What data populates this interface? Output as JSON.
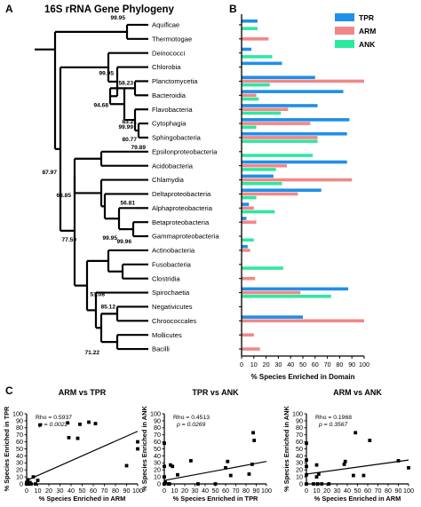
{
  "panels": {
    "A": {
      "letter": "A",
      "title": "16S rRNA Gene Phylogeny"
    },
    "B": {
      "letter": "B"
    },
    "C": {
      "letter": "C"
    }
  },
  "colors": {
    "TPR": "#1f8fe8",
    "ARM": "#f08888",
    "ANK": "#2ee8a0"
  },
  "tree": {
    "bootstrap": {
      "aq_th": "99.95",
      "plan_bact": "58.23",
      "plan_grp": "94.68",
      "flav_cyt": "99.99",
      "cyt_sph": "83.21",
      "bact_big": "80.77",
      "eps_aci": "79.89",
      "bact_group": "99.95",
      "alpha_grp": "56.81",
      "beta_gamma": "99.96",
      "proteo": "99.95",
      "proteo_grp": "87.97",
      "prot_chl": "68.85",
      "big": "77.59",
      "firm": "51.08",
      "neg_chro": "85.12",
      "moll_bac": "71.22"
    }
  },
  "chart_data": [
    {
      "type": "bar",
      "orientation": "horizontal",
      "categories": [
        "Aquificae",
        "Thermotogae",
        "Deinococci",
        "Chlorobia",
        "Planctomycetia",
        "Bacteroidia",
        "Flavobacteria",
        "Cytophagia",
        "Sphingobacteria",
        "Epsilonproteobacteria",
        "Acidobacteria",
        "Chlamydia",
        "Deltaproteobacteria",
        "Alphaproteobacteria",
        "Betaproteobacteria",
        "Gammaproteobacteria",
        "Actinobacteria",
        "Fusobacteria",
        "Clostridia",
        "Spirochaetia",
        "Negativicutes",
        "Chroococcales",
        "Mollicutes",
        "Bacilli"
      ],
      "series": [
        {
          "name": "TPR",
          "values": [
            13,
            0,
            8,
            33,
            60,
            83,
            62,
            88,
            86,
            0,
            86,
            26,
            65,
            6,
            4,
            0,
            5,
            0,
            0,
            87,
            0,
            50,
            0,
            0
          ]
        },
        {
          "name": "ARM",
          "values": [
            0,
            22,
            0,
            0,
            100,
            12,
            38,
            56,
            62,
            0,
            37,
            90,
            46,
            10,
            12,
            0,
            7,
            0,
            11,
            48,
            0,
            100,
            10,
            15
          ]
        },
        {
          "name": "ANK",
          "values": [
            13,
            0,
            25,
            0,
            23,
            14,
            32,
            12,
            62,
            58,
            28,
            33,
            12,
            27,
            0,
            10,
            0,
            34,
            0,
            73,
            0,
            0,
            0,
            0
          ]
        }
      ],
      "xlim": [
        0,
        100
      ],
      "xticks": [
        "0",
        "10",
        "20",
        "30",
        "40",
        "50",
        "60",
        "70",
        "80",
        "90",
        "100"
      ],
      "xlabel": "% Species Enriched in Domain",
      "legend": "top-right"
    },
    {
      "type": "scatter",
      "title": "ARM vs TPR",
      "xlabel": "% Species Enriched in ARM",
      "ylabel": "% Species Enriched in TPR",
      "xlim": [
        0,
        100
      ],
      "ylim": [
        0,
        100
      ],
      "xticks": [
        "0",
        "10",
        "20",
        "30",
        "40",
        "50",
        "60",
        "70",
        "80",
        "90",
        "100"
      ],
      "yticks": [
        "0",
        "10",
        "20",
        "30",
        "40",
        "50",
        "60",
        "70",
        "80",
        "90",
        "100"
      ],
      "stats": {
        "rho_label": "Rho = 0.5937",
        "p_label": "p = 0.0022"
      },
      "points": [
        [
          0,
          0
        ],
        [
          0,
          2
        ],
        [
          1,
          0
        ],
        [
          1,
          6
        ],
        [
          2,
          0
        ],
        [
          3,
          2
        ],
        [
          4,
          0
        ],
        [
          6,
          10
        ],
        [
          8,
          0
        ],
        [
          10,
          5
        ],
        [
          12,
          84
        ],
        [
          37,
          87
        ],
        [
          38,
          66
        ],
        [
          46,
          65
        ],
        [
          48,
          85
        ],
        [
          56,
          88
        ],
        [
          62,
          86
        ],
        [
          90,
          26
        ],
        [
          100,
          50
        ],
        [
          100,
          60
        ]
      ],
      "trend": [
        [
          0,
          5
        ],
        [
          100,
          75
        ]
      ]
    },
    {
      "type": "scatter",
      "title": "TPR vs ANK",
      "xlabel": "% Species Enriched in TPR",
      "ylabel": "% Species Enriched in ANK",
      "xlim": [
        0,
        100
      ],
      "ylim": [
        0,
        100
      ],
      "xticks": [
        "0",
        "10",
        "20",
        "30",
        "40",
        "50",
        "60",
        "70",
        "80",
        "90",
        "100"
      ],
      "yticks": [
        "0",
        "10",
        "20",
        "30",
        "40",
        "50",
        "60",
        "70",
        "80",
        "90",
        "100"
      ],
      "stats": {
        "rho_label": "Rho = 0.4513",
        "p_label": "p = 0.0269"
      },
      "points": [
        [
          0,
          0
        ],
        [
          0,
          10
        ],
        [
          0,
          25
        ],
        [
          0,
          58
        ],
        [
          1,
          2
        ],
        [
          4,
          0
        ],
        [
          5,
          0
        ],
        [
          6,
          27
        ],
        [
          8,
          25
        ],
        [
          13,
          13
        ],
        [
          26,
          33
        ],
        [
          33,
          0
        ],
        [
          50,
          0
        ],
        [
          60,
          23
        ],
        [
          62,
          32
        ],
        [
          65,
          12
        ],
        [
          83,
          14
        ],
        [
          86,
          28
        ],
        [
          87,
          73
        ],
        [
          88,
          62
        ]
      ],
      "trend": [
        [
          0,
          5
        ],
        [
          100,
          32
        ]
      ]
    },
    {
      "type": "scatter",
      "title": "ARM vs ANK",
      "xlabel": "% Species Enriched in ARM",
      "ylabel": "% Species Enriched in ANK",
      "xlim": [
        0,
        100
      ],
      "ylim": [
        0,
        100
      ],
      "xticks": [
        "0",
        "10",
        "20",
        "30",
        "40",
        "50",
        "60",
        "70",
        "80",
        "90",
        "100"
      ],
      "yticks": [
        "0",
        "10",
        "20",
        "30",
        "40",
        "50",
        "60",
        "70",
        "80",
        "90",
        "100"
      ],
      "stats": {
        "rho_label": "Rho = 0.1968",
        "p_label": "p = 0.3567"
      },
      "points": [
        [
          0,
          0
        ],
        [
          0,
          13
        ],
        [
          0,
          25
        ],
        [
          0,
          34
        ],
        [
          0,
          58
        ],
        [
          7,
          0
        ],
        [
          10,
          27
        ],
        [
          10,
          10
        ],
        [
          12,
          14
        ],
        [
          11,
          0
        ],
        [
          15,
          0
        ],
        [
          22,
          0
        ],
        [
          37,
          28
        ],
        [
          38,
          32
        ],
        [
          46,
          12
        ],
        [
          48,
          73
        ],
        [
          56,
          12
        ],
        [
          62,
          62
        ],
        [
          90,
          33
        ],
        [
          100,
          23
        ]
      ],
      "trend": [
        [
          0,
          14
        ],
        [
          100,
          34
        ]
      ]
    }
  ]
}
